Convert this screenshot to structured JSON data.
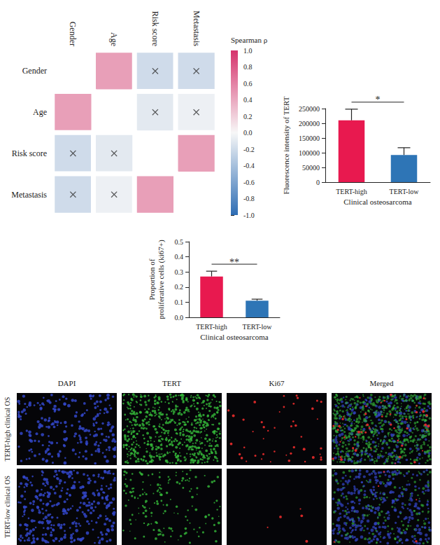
{
  "chart_data": [
    {
      "type": "heatmap",
      "variables": [
        "Gender",
        "Age",
        "Risk score",
        "Metastasis"
      ],
      "values": [
        [
          null,
          0.45,
          -0.2,
          -0.2
        ],
        [
          0.45,
          null,
          -0.1,
          -0.05
        ],
        [
          -0.2,
          -0.1,
          null,
          0.45
        ],
        [
          -0.2,
          -0.05,
          0.45,
          null
        ]
      ],
      "significant": [
        [
          null,
          true,
          false,
          false
        ],
        [
          true,
          null,
          false,
          false
        ],
        [
          false,
          false,
          null,
          true
        ],
        [
          false,
          false,
          true,
          null
        ]
      ],
      "marker": "x",
      "colorbar": {
        "title": "Spearman ρ",
        "colors": [
          "#2e6db4",
          "#f7f7f7",
          "#d6336c"
        ],
        "range": [
          -1,
          1
        ],
        "ticks": [
          {
            "value": -1,
            "label": "-1.0"
          },
          -0.8,
          -0.6,
          -0.4,
          -0.2,
          {
            "value": 0,
            "label": "0.0"
          },
          0.2,
          0.4,
          0.6,
          0.8,
          {
            "value": 1,
            "label": "1.0"
          }
        ]
      }
    },
    {
      "type": "bar",
      "categories": [
        "TERT-high",
        "TERT-low"
      ],
      "values": [
        210000,
        92000
      ],
      "errors": [
        38000,
        25000
      ],
      "colors": [
        "#e8194f",
        "#2e75b6"
      ],
      "ylabel": "Fluorescence intensity of TERT",
      "xlabel": "Clinical osteosarcoma",
      "ylim": [
        0,
        250000
      ],
      "yticks": [
        0,
        50000,
        100000,
        150000,
        200000,
        250000
      ],
      "annotation": "*",
      "grid": false
    },
    {
      "type": "bar",
      "categories": [
        "TERT-high",
        "TERT-low"
      ],
      "values": [
        0.27,
        0.11
      ],
      "errors": [
        0.035,
        0.01
      ],
      "colors": [
        "#e8194f",
        "#2e75b6"
      ],
      "ylabel": "Proportion of\nproliferative cells (ki67+)",
      "xlabel": "Clinical osteosarcoma",
      "ylim": [
        0,
        0.5
      ],
      "yticks": [
        {
          "value": 0,
          "label": "0.0"
        },
        0.1,
        0.2,
        0.3,
        0.4,
        0.5
      ],
      "annotation": "**",
      "grid": false
    }
  ],
  "image_panel": {
    "columns": [
      "DAPI",
      "TERT",
      "Ki67",
      "Merged"
    ],
    "rows": [
      "TERT-high clinical OS",
      "TERT-low clinical OS"
    ]
  }
}
